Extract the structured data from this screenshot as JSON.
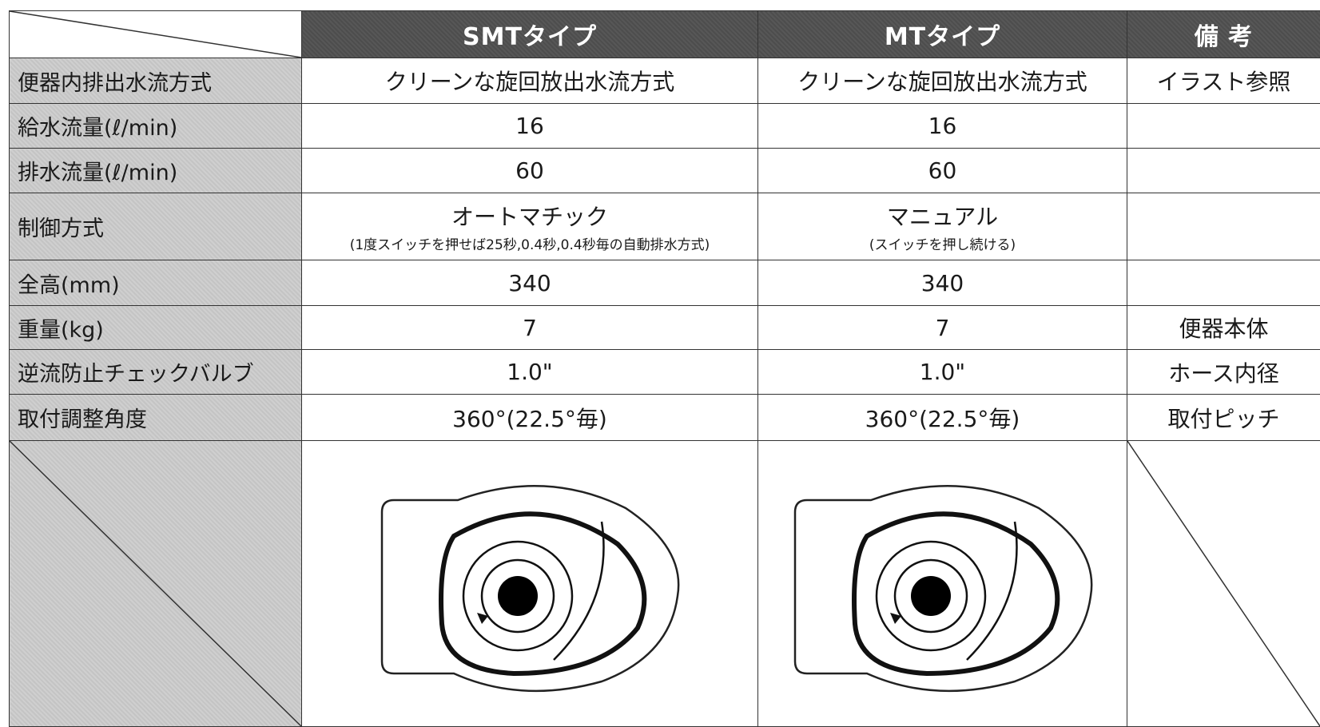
{
  "table": {
    "columns": [
      "SMTタイプ",
      "MTタイプ",
      "備 考"
    ],
    "rows": [
      {
        "label": "便器内排出水流方式",
        "smt": "クリーンな旋回放出水流方式",
        "mt": "クリーンな旋回放出水流方式",
        "note": "イラスト参照"
      },
      {
        "label": "給水流量(ℓ/min)",
        "smt": 16,
        "mt": 16
      },
      {
        "label": "排水流量(ℓ/min)",
        "smt": 60,
        "mt": 60
      },
      {
        "label": "制御方式",
        "smt": "オートマチック",
        "smt_sub": "(1度スイッチを押せば25秒,0.4秒,0.4秒毎の自動排水方式)",
        "mt": "マニュアル",
        "mt_sub": "(スイッチを押し続ける)"
      },
      {
        "label": "全高(mm)",
        "smt": 340,
        "mt": 340
      },
      {
        "label": "重量(kg)",
        "smt": 7,
        "mt": 7,
        "note": "便器本体"
      },
      {
        "label": "逆流防止チェックバルブ",
        "smt": "1.0\"",
        "mt": "1.0\"",
        "note": "ホース内径"
      },
      {
        "label": "取付調整角度",
        "smt": "360°(22.5°毎)",
        "mt": "360°(22.5°毎)",
        "note": "取付ピッチ"
      }
    ]
  }
}
